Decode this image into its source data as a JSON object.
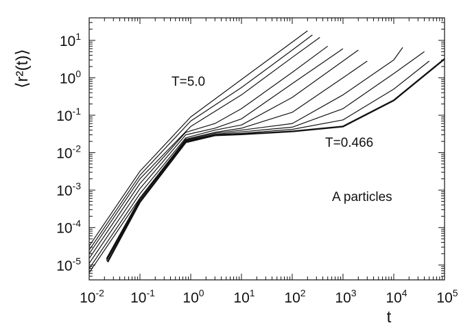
{
  "chart_data": {
    "type": "line",
    "title": "",
    "xlabel": "t",
    "ylabel": "⟨r²(t)⟩",
    "xscale": "log",
    "yscale": "log",
    "xlim": [
      0.01,
      100000
    ],
    "ylim": [
      4e-06,
      40
    ],
    "grid": false,
    "x_tick_labels": [
      {
        "value": 0.01,
        "base": "10",
        "exp": "-2"
      },
      {
        "value": 0.1,
        "base": "10",
        "exp": "-1"
      },
      {
        "value": 1,
        "base": "10",
        "exp": "0"
      },
      {
        "value": 10,
        "base": "10",
        "exp": "1"
      },
      {
        "value": 100,
        "base": "10",
        "exp": "2"
      },
      {
        "value": 1000,
        "base": "10",
        "exp": "3"
      },
      {
        "value": 10000,
        "base": "10",
        "exp": "4"
      },
      {
        "value": 100000,
        "base": "10",
        "exp": "5"
      }
    ],
    "y_tick_labels": [
      {
        "value": 1e-05,
        "base": "10",
        "exp": "-5"
      },
      {
        "value": 0.0001,
        "base": "10",
        "exp": "-4"
      },
      {
        "value": 0.001,
        "base": "10",
        "exp": "-3"
      },
      {
        "value": 0.01,
        "base": "10",
        "exp": "-2"
      },
      {
        "value": 0.1,
        "base": "10",
        "exp": "-1"
      },
      {
        "value": 1,
        "base": "10",
        "exp": "0"
      },
      {
        "value": 10,
        "base": "10",
        "exp": "1"
      }
    ],
    "annotations": {
      "high_temperature": "T=5.0",
      "low_temperature": "T=0.466",
      "particles": "A particles"
    },
    "series": [
      {
        "stroke_width": 1.2,
        "points": [
          [
            0.01,
            3.2e-05
          ],
          [
            0.1,
            0.0032
          ],
          [
            1,
            0.09
          ],
          [
            10,
            0.9
          ],
          [
            100,
            9
          ],
          [
            200,
            18
          ]
        ]
      },
      {
        "stroke_width": 1.2,
        "points": [
          [
            0.01,
            2.5e-05
          ],
          [
            0.1,
            0.0025
          ],
          [
            1,
            0.07
          ],
          [
            10,
            0.55
          ],
          [
            100,
            5.5
          ],
          [
            250,
            14
          ]
        ]
      },
      {
        "stroke_width": 1.2,
        "points": [
          [
            0.01,
            2e-05
          ],
          [
            0.1,
            0.002
          ],
          [
            1,
            0.05
          ],
          [
            10,
            0.35
          ],
          [
            100,
            3.5
          ],
          [
            350,
            12
          ]
        ]
      },
      {
        "stroke_width": 1.2,
        "points": [
          [
            0.01,
            1.5e-05
          ],
          [
            0.1,
            0.0015
          ],
          [
            0.8,
            0.035
          ],
          [
            3,
            0.06
          ],
          [
            10,
            0.15
          ],
          [
            100,
            1.4
          ],
          [
            500,
            7
          ]
        ]
      },
      {
        "stroke_width": 1.2,
        "points": [
          [
            0.01,
            1.1e-05
          ],
          [
            0.1,
            0.0011
          ],
          [
            0.8,
            0.03
          ],
          [
            3,
            0.045
          ],
          [
            10,
            0.08
          ],
          [
            100,
            0.7
          ],
          [
            1000,
            6
          ]
        ]
      },
      {
        "stroke_width": 1.2,
        "points": [
          [
            0.01,
            8e-06
          ],
          [
            0.1,
            0.0008
          ],
          [
            0.8,
            0.025
          ],
          [
            3,
            0.04
          ],
          [
            10,
            0.055
          ],
          [
            100,
            0.3
          ],
          [
            1000,
            2.8
          ],
          [
            2000,
            5.5
          ]
        ]
      },
      {
        "stroke_width": 1.2,
        "points": [
          [
            0.01,
            6.2e-06
          ],
          [
            0.1,
            0.00062
          ],
          [
            0.8,
            0.023
          ],
          [
            3,
            0.035
          ],
          [
            10,
            0.045
          ],
          [
            100,
            0.12
          ],
          [
            1000,
            1.0
          ],
          [
            3000,
            2.8
          ]
        ]
      },
      {
        "stroke_width": 1.2,
        "points": [
          [
            0.022,
            1.5e-05
          ],
          [
            0.1,
            0.0006
          ],
          [
            0.8,
            0.022
          ],
          [
            3,
            0.033
          ],
          [
            10,
            0.04
          ],
          [
            100,
            0.06
          ],
          [
            1000,
            0.35
          ],
          [
            10000,
            3.0
          ],
          [
            15000,
            6.5
          ]
        ]
      },
      {
        "stroke_width": 1.2,
        "points": [
          [
            0.022,
            1.4e-05
          ],
          [
            0.1,
            0.00055
          ],
          [
            0.8,
            0.021
          ],
          [
            3,
            0.031
          ],
          [
            10,
            0.036
          ],
          [
            100,
            0.048
          ],
          [
            1000,
            0.15
          ],
          [
            10000,
            1.3
          ],
          [
            40000,
            5.0
          ]
        ]
      },
      {
        "stroke_width": 1.2,
        "points": [
          [
            0.022,
            1.3e-05
          ],
          [
            0.1,
            0.0005
          ],
          [
            0.8,
            0.02
          ],
          [
            3,
            0.03
          ],
          [
            10,
            0.033
          ],
          [
            100,
            0.042
          ],
          [
            1000,
            0.075
          ],
          [
            10000,
            0.5
          ],
          [
            50000,
            2.8
          ]
        ]
      },
      {
        "stroke_width": 2.4,
        "points": [
          [
            0.023,
            1.2e-05
          ],
          [
            0.1,
            0.00048
          ],
          [
            0.8,
            0.019
          ],
          [
            3,
            0.029
          ],
          [
            10,
            0.031
          ],
          [
            100,
            0.037
          ],
          [
            1000,
            0.05
          ],
          [
            10000,
            0.25
          ],
          [
            100000,
            3.2
          ]
        ]
      }
    ]
  }
}
